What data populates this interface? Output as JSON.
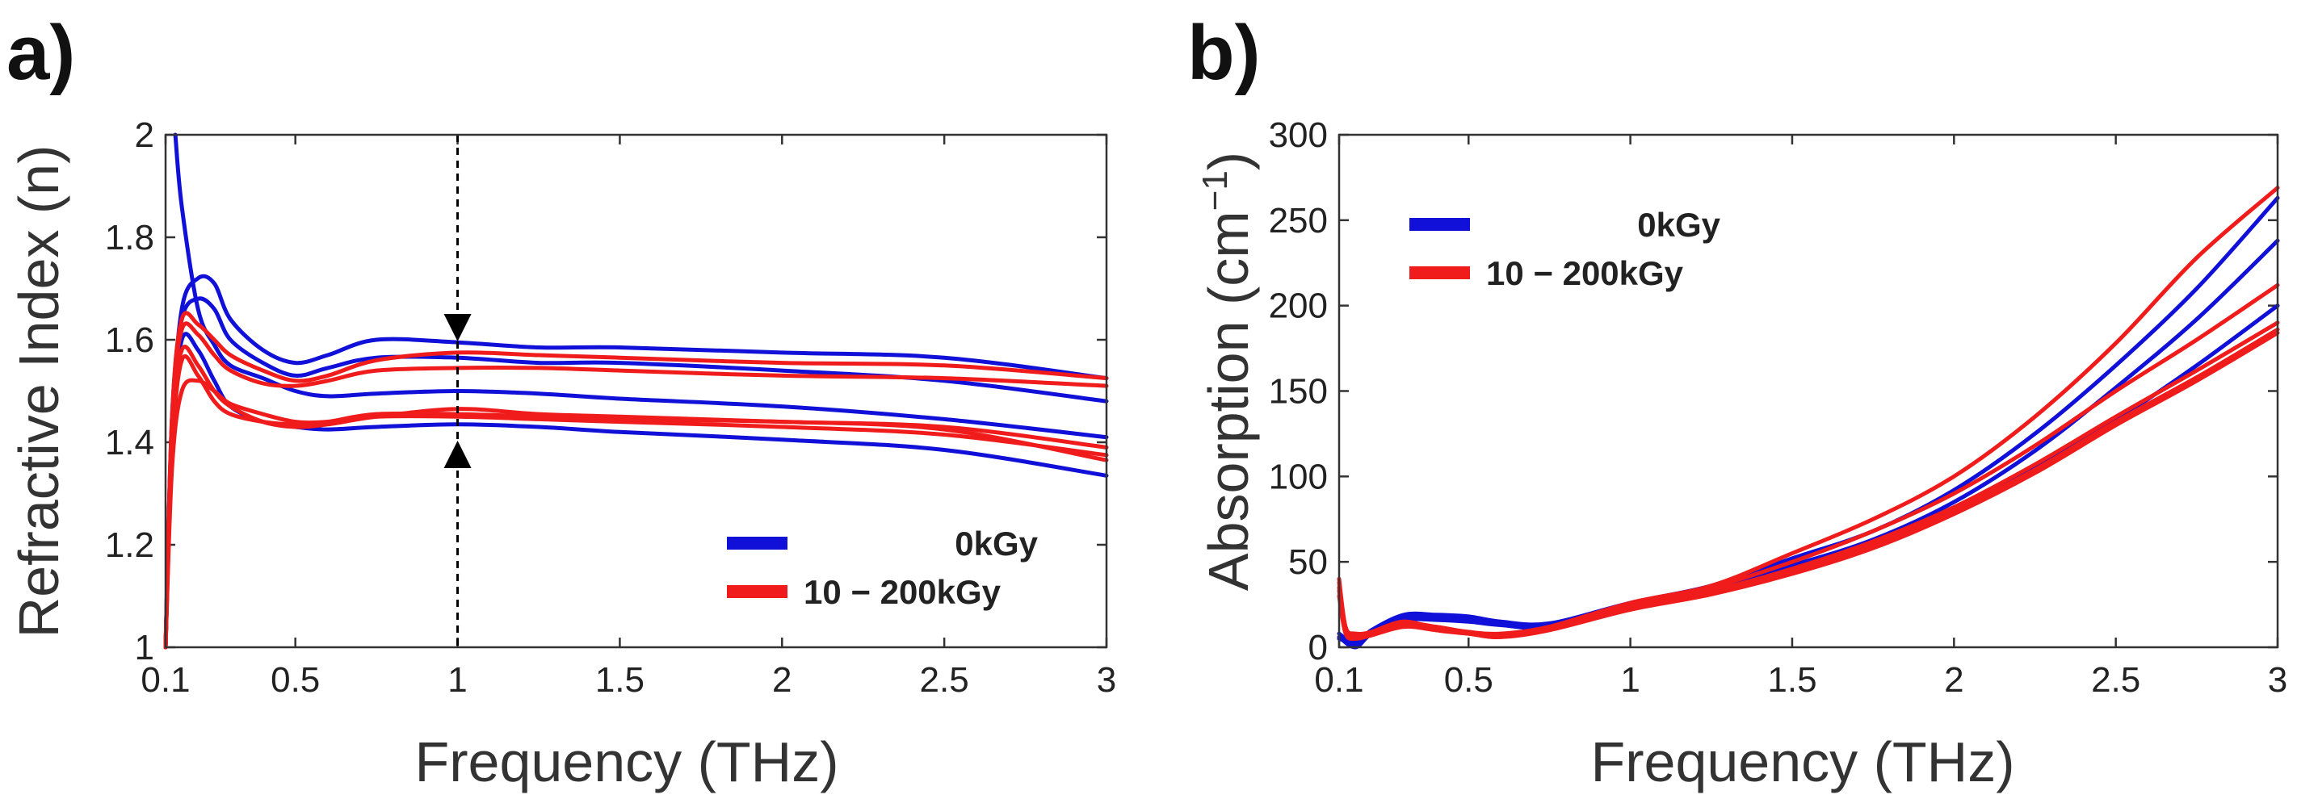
{
  "figure": {
    "colors": {
      "zero_dose": "#1010d8",
      "irradiated": "#f01c1c",
      "marker": "#000000"
    }
  },
  "chart_data": [
    {
      "panel_label": "a)",
      "type": "line",
      "title": "",
      "xlabel": "Frequency (THz)",
      "ylabel": "Refractive Index (n)",
      "xlim": [
        0.1,
        3
      ],
      "ylim": [
        1,
        2
      ],
      "xticks": [
        0.1,
        0.5,
        1,
        1.5,
        2,
        2.5,
        3
      ],
      "xtick_labels": [
        "0.1",
        "0.5",
        "1",
        "1.5",
        "2",
        "2.5",
        "3"
      ],
      "yticks": [
        1,
        1.2,
        1.4,
        1.6,
        1.8,
        2
      ],
      "ytick_labels": [
        "1",
        "1.2",
        "1.4",
        "1.6",
        "1.8",
        "2"
      ],
      "legend": {
        "position": "bottom-right",
        "entries": [
          {
            "label": "0kGy",
            "color": "#1010d8"
          },
          {
            "label": "10 − 200kGy",
            "color": "#f01c1c"
          }
        ]
      },
      "annotation": {
        "type": "dashed vertical line with opposing arrows",
        "x": 1,
        "arrow_top_y": 1.6,
        "arrow_bottom_y": 1.4
      },
      "series": [
        {
          "name": "0kGy-1",
          "group": "0kGy",
          "x": [
            0.1,
            0.12,
            0.15,
            0.2,
            0.25,
            0.3,
            0.4,
            0.5,
            0.6,
            0.75,
            1,
            1.25,
            1.5,
            2,
            2.5,
            3
          ],
          "y": [
            1.0,
            1.42,
            1.66,
            1.72,
            1.71,
            1.64,
            1.58,
            1.555,
            1.57,
            1.6,
            1.595,
            1.585,
            1.585,
            1.575,
            1.565,
            1.525
          ]
        },
        {
          "name": "0kGy-2",
          "group": "0kGy",
          "x": [
            0.1,
            0.12,
            0.15,
            0.2,
            0.25,
            0.3,
            0.4,
            0.5,
            0.6,
            0.75,
            1,
            1.25,
            1.5,
            2,
            2.5,
            3
          ],
          "y": [
            1.0,
            1.45,
            1.64,
            1.68,
            1.66,
            1.6,
            1.555,
            1.53,
            1.545,
            1.565,
            1.565,
            1.555,
            1.555,
            1.54,
            1.52,
            1.48
          ]
        },
        {
          "name": "0kGy-3",
          "group": "0kGy",
          "x": [
            0.13,
            0.15,
            0.2,
            0.25,
            0.3,
            0.4,
            0.5,
            0.6,
            0.75,
            1,
            1.25,
            1.5,
            2,
            2.5,
            3
          ],
          "y": [
            2.0,
            1.86,
            1.66,
            1.59,
            1.55,
            1.525,
            1.5,
            1.49,
            1.495,
            1.5,
            1.495,
            1.485,
            1.47,
            1.445,
            1.41
          ]
        },
        {
          "name": "0kGy-4",
          "group": "0kGy",
          "x": [
            0.1,
            0.12,
            0.15,
            0.2,
            0.25,
            0.3,
            0.4,
            0.5,
            0.6,
            0.75,
            1,
            1.25,
            1.5,
            2,
            2.5,
            3
          ],
          "y": [
            1.0,
            1.4,
            1.6,
            1.58,
            1.52,
            1.47,
            1.44,
            1.43,
            1.425,
            1.43,
            1.435,
            1.43,
            1.42,
            1.405,
            1.385,
            1.335
          ]
        },
        {
          "name": "irradiated-1",
          "group": "10-200kGy",
          "x": [
            0.1,
            0.12,
            0.15,
            0.2,
            0.25,
            0.3,
            0.4,
            0.5,
            0.6,
            0.75,
            1,
            1.25,
            1.5,
            2,
            2.5,
            3
          ],
          "y": [
            1.0,
            1.45,
            1.64,
            1.63,
            1.6,
            1.57,
            1.54,
            1.52,
            1.53,
            1.56,
            1.575,
            1.57,
            1.565,
            1.555,
            1.55,
            1.525
          ]
        },
        {
          "name": "irradiated-2",
          "group": "10-200kGy",
          "x": [
            0.1,
            0.12,
            0.15,
            0.2,
            0.25,
            0.3,
            0.4,
            0.5,
            0.6,
            0.75,
            1,
            1.25,
            1.5,
            2,
            2.5,
            3
          ],
          "y": [
            1.0,
            1.44,
            1.62,
            1.61,
            1.57,
            1.54,
            1.515,
            1.51,
            1.52,
            1.54,
            1.545,
            1.545,
            1.54,
            1.53,
            1.525,
            1.51
          ]
        },
        {
          "name": "irradiated-3",
          "group": "10-200kGy",
          "x": [
            0.1,
            0.12,
            0.15,
            0.2,
            0.25,
            0.3,
            0.4,
            0.5,
            0.6,
            0.75,
            1,
            1.25,
            1.5,
            2,
            2.5,
            3
          ],
          "y": [
            1.0,
            1.42,
            1.58,
            1.55,
            1.5,
            1.47,
            1.44,
            1.43,
            1.435,
            1.45,
            1.465,
            1.455,
            1.45,
            1.44,
            1.43,
            1.39
          ]
        },
        {
          "name": "irradiated-4",
          "group": "10-200kGy",
          "x": [
            0.1,
            0.12,
            0.15,
            0.2,
            0.25,
            0.3,
            0.4,
            0.5,
            0.6,
            0.75,
            1,
            1.25,
            1.5,
            2,
            2.5,
            3
          ],
          "y": [
            1.0,
            1.38,
            1.56,
            1.53,
            1.48,
            1.455,
            1.44,
            1.435,
            1.44,
            1.455,
            1.455,
            1.45,
            1.445,
            1.44,
            1.425,
            1.365
          ]
        },
        {
          "name": "irradiated-5",
          "group": "10-200kGy",
          "x": [
            0.1,
            0.12,
            0.15,
            0.2,
            0.25,
            0.3,
            0.4,
            0.5,
            0.6,
            0.75,
            1,
            1.25,
            1.5,
            2,
            2.5,
            3
          ],
          "y": [
            1.0,
            1.35,
            1.5,
            1.52,
            1.5,
            1.475,
            1.455,
            1.44,
            1.44,
            1.45,
            1.45,
            1.445,
            1.44,
            1.43,
            1.415,
            1.375
          ]
        }
      ]
    },
    {
      "panel_label": "b)",
      "type": "line",
      "title": "",
      "xlabel": "Frequency (THz)",
      "ylabel": "Absorption (cm",
      "ylabel_superscript": "−1",
      "ylabel_suffix": ")",
      "xlim": [
        0.1,
        3
      ],
      "ylim": [
        0,
        300
      ],
      "xticks": [
        0.1,
        0.5,
        1,
        1.5,
        2,
        2.5,
        3
      ],
      "xtick_labels": [
        "0.1",
        "0.5",
        "1",
        "1.5",
        "2",
        "2.5",
        "3"
      ],
      "yticks": [
        0,
        50,
        100,
        150,
        200,
        250,
        300
      ],
      "ytick_labels": [
        "0",
        "50",
        "100",
        "150",
        "200",
        "250",
        "300"
      ],
      "legend": {
        "position": "top-left",
        "entries": [
          {
            "label": "0kGy",
            "color": "#1010d8"
          },
          {
            "label": "10 − 200kGy",
            "color": "#f01c1c"
          }
        ]
      },
      "series": [
        {
          "name": "0kGy-1",
          "group": "0kGy",
          "x": [
            0.1,
            0.15,
            0.2,
            0.3,
            0.4,
            0.5,
            0.6,
            0.75,
            1,
            1.25,
            1.5,
            1.75,
            2,
            2.25,
            2.5,
            2.75,
            3
          ],
          "y": [
            8,
            2,
            10,
            19,
            19,
            18,
            15,
            14,
            26,
            36,
            52,
            68,
            92,
            125,
            165,
            210,
            263
          ]
        },
        {
          "name": "0kGy-2",
          "group": "0kGy",
          "x": [
            0.1,
            0.15,
            0.2,
            0.3,
            0.4,
            0.5,
            0.6,
            0.75,
            1,
            1.25,
            1.5,
            1.75,
            2,
            2.25,
            2.5,
            2.75,
            3
          ],
          "y": [
            6,
            0,
            8,
            17,
            18,
            17,
            14,
            13,
            25,
            35,
            48,
            63,
            85,
            115,
            152,
            192,
            238
          ]
        },
        {
          "name": "0kGy-3",
          "group": "0kGy",
          "x": [
            0.1,
            0.15,
            0.2,
            0.3,
            0.4,
            0.5,
            0.6,
            0.75,
            1,
            1.25,
            1.5,
            1.75,
            2,
            2.25,
            2.5,
            2.75,
            3
          ],
          "y": [
            5,
            3,
            9,
            16,
            16,
            15,
            13,
            12,
            24,
            34,
            46,
            60,
            80,
            105,
            133,
            165,
            200
          ]
        },
        {
          "name": "irradiated-1",
          "group": "10-200kGy",
          "x": [
            0.1,
            0.12,
            0.15,
            0.2,
            0.3,
            0.4,
            0.5,
            0.6,
            0.75,
            1,
            1.25,
            1.5,
            1.75,
            2,
            2.25,
            2.5,
            2.75,
            3
          ],
          "y": [
            40,
            12,
            8,
            9,
            15,
            11,
            8,
            7,
            12,
            26,
            36,
            55,
            75,
            100,
            135,
            178,
            228,
            269
          ]
        },
        {
          "name": "irradiated-2",
          "group": "10-200kGy",
          "x": [
            0.1,
            0.12,
            0.15,
            0.2,
            0.3,
            0.4,
            0.5,
            0.6,
            0.75,
            1,
            1.25,
            1.5,
            1.75,
            2,
            2.25,
            2.5,
            2.75,
            3
          ],
          "y": [
            35,
            10,
            6,
            8,
            14,
            12,
            9,
            8,
            12,
            25,
            35,
            50,
            68,
            90,
            118,
            150,
            180,
            212
          ]
        },
        {
          "name": "irradiated-3",
          "group": "10-200kGy",
          "x": [
            0.1,
            0.12,
            0.15,
            0.2,
            0.3,
            0.4,
            0.5,
            0.6,
            0.75,
            1,
            1.25,
            1.5,
            1.75,
            2,
            2.25,
            2.5,
            2.75,
            3
          ],
          "y": [
            38,
            11,
            7,
            9,
            15,
            10,
            8,
            6,
            11,
            24,
            33,
            46,
            62,
            82,
            107,
            135,
            162,
            190
          ]
        },
        {
          "name": "irradiated-4",
          "group": "10-200kGy",
          "x": [
            0.1,
            0.12,
            0.15,
            0.2,
            0.3,
            0.4,
            0.5,
            0.6,
            0.75,
            1,
            1.25,
            1.5,
            1.75,
            2,
            2.25,
            2.5,
            2.75,
            3
          ],
          "y": [
            33,
            9,
            6,
            8,
            13,
            11,
            9,
            7,
            11,
            23,
            32,
            44,
            60,
            80,
            104,
            132,
            158,
            186
          ]
        },
        {
          "name": "irradiated-5",
          "group": "10-200kGy",
          "x": [
            0.1,
            0.12,
            0.15,
            0.2,
            0.3,
            0.4,
            0.5,
            0.6,
            0.75,
            1,
            1.25,
            1.5,
            1.75,
            2,
            2.25,
            2.5,
            2.75,
            3
          ],
          "y": [
            30,
            8,
            5,
            7,
            12,
            10,
            8,
            6,
            10,
            22,
            31,
            43,
            58,
            78,
            102,
            130,
            156,
            184
          ]
        }
      ]
    }
  ]
}
